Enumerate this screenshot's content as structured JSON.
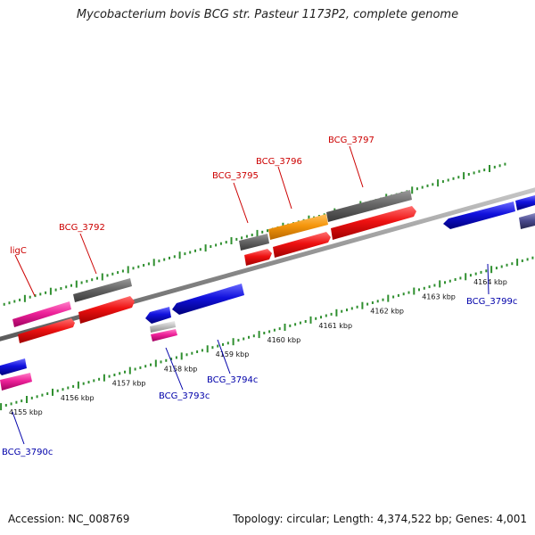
{
  "title": "Mycobacterium bovis BCG str. Pasteur 1173P2, complete genome",
  "footer": {
    "accession": "Accession: NC_008769",
    "summary": "Topology: circular; Length: 4,374,522 bp; Genes: 4,001"
  },
  "colors": {
    "backbone": "#8c8c8c",
    "ticks": "#2f8f2f",
    "forward_label": "#cc0000",
    "reverse_label": "#0000aa",
    "red": "#ee1111",
    "gray": "#666666",
    "orange": "#f5960c",
    "magenta": "#ee2299",
    "blue": "#1111dd",
    "purple": "#4b4b8f",
    "silver": "#bbbbbb"
  },
  "scale": {
    "labels": [
      "4155 kbp",
      "4156 kbp",
      "4157 kbp",
      "4158 kbp",
      "4159 kbp",
      "4160 kbp",
      "4161 kbp",
      "4162 kbp",
      "4163 kbp",
      "4164 kbp"
    ],
    "label_kbp": [
      4155,
      4156,
      4157,
      4158,
      4159,
      4160,
      4161,
      4162,
      4163,
      4164
    ]
  },
  "gene_labels": [
    {
      "text": "ligC",
      "strand": "forward"
    },
    {
      "text": "BCG_3792",
      "strand": "forward"
    },
    {
      "text": "BCG_3795",
      "strand": "forward"
    },
    {
      "text": "BCG_3796",
      "strand": "forward"
    },
    {
      "text": "BCG_3797",
      "strand": "forward"
    },
    {
      "text": "BCG_3790c",
      "strand": "reverse"
    },
    {
      "text": "BCG_3793c",
      "strand": "reverse"
    },
    {
      "text": "BCG_3794c",
      "strand": "reverse"
    },
    {
      "text": "BCG_3799c",
      "strand": "reverse"
    }
  ]
}
